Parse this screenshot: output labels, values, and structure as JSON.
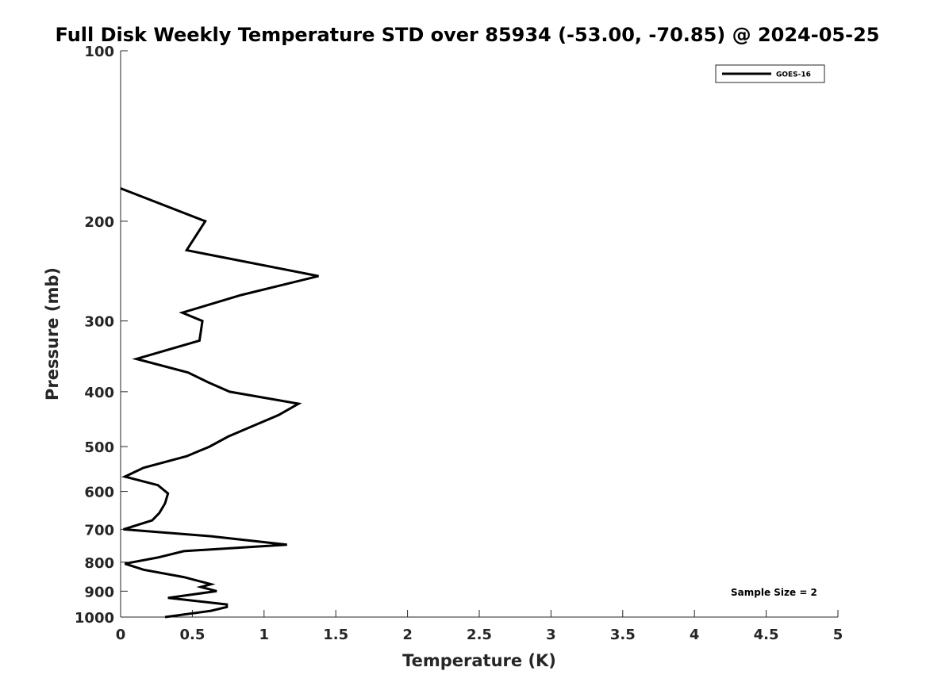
{
  "chart_data": {
    "type": "line",
    "title": "Full Disk Weekly Temperature STD over 85934 (-53.00, -70.85) @ 2024-05-25",
    "xlabel": "Temperature (K)",
    "ylabel": "Pressure (mb)",
    "xlim": [
      0,
      5
    ],
    "ylim": [
      100,
      1000
    ],
    "y_scale": "log",
    "y_reversed": true,
    "x_ticks": [
      "0",
      "0.5",
      "1",
      "1.5",
      "2",
      "2.5",
      "3",
      "3.5",
      "4",
      "4.5",
      "5"
    ],
    "y_ticks": [
      "100",
      "200",
      "300",
      "400",
      "500",
      "600",
      "700",
      "800",
      "900",
      "1000"
    ],
    "grid": false,
    "legend_position": "top-right",
    "annotation": "Sample Size = 2",
    "series": [
      {
        "name": "GOES-16",
        "color": "#000000",
        "points": [
          [
            0.0,
            175
          ],
          [
            0.59,
            200
          ],
          [
            0.46,
            225
          ],
          [
            1.38,
            250
          ],
          [
            0.84,
            270
          ],
          [
            0.43,
            290
          ],
          [
            0.57,
            300
          ],
          [
            0.55,
            325
          ],
          [
            0.11,
            350
          ],
          [
            0.47,
            370
          ],
          [
            0.61,
            385
          ],
          [
            0.76,
            400
          ],
          [
            1.24,
            420
          ],
          [
            1.1,
            440
          ],
          [
            0.92,
            460
          ],
          [
            0.75,
            480
          ],
          [
            0.62,
            500
          ],
          [
            0.46,
            520
          ],
          [
            0.16,
            545
          ],
          [
            0.03,
            565
          ],
          [
            0.26,
            585
          ],
          [
            0.33,
            605
          ],
          [
            0.31,
            630
          ],
          [
            0.27,
            655
          ],
          [
            0.22,
            675
          ],
          [
            0.02,
            700
          ],
          [
            0.63,
            720
          ],
          [
            1.16,
            745
          ],
          [
            0.44,
            765
          ],
          [
            0.26,
            785
          ],
          [
            0.03,
            805
          ],
          [
            0.16,
            825
          ],
          [
            0.44,
            850
          ],
          [
            0.63,
            875
          ],
          [
            0.56,
            885
          ],
          [
            0.67,
            900
          ],
          [
            0.33,
            925
          ],
          [
            0.74,
            950
          ],
          [
            0.74,
            960
          ],
          [
            0.63,
            975
          ],
          [
            0.31,
            1000
          ]
        ]
      }
    ]
  }
}
